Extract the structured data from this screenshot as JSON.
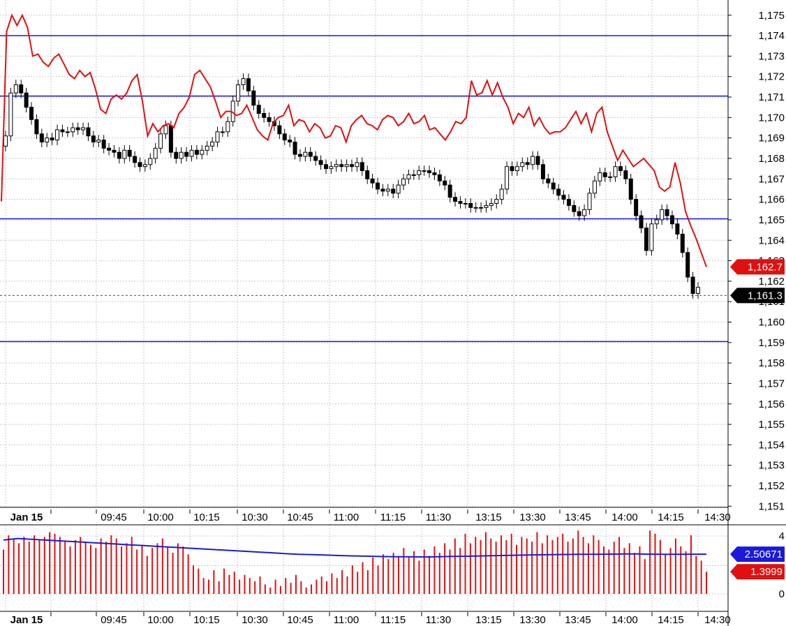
{
  "chart_data": [
    {
      "type": "candlestick",
      "y_ticks": [
        "1,151",
        "1,152",
        "1,153",
        "1,154",
        "1,155",
        "1,156",
        "1,157",
        "1,158",
        "1,159",
        "1,160",
        "1,161",
        "1,162",
        "1,163",
        "1,164",
        "1,165",
        "1,166",
        "1,167",
        "1,168",
        "1,169",
        "1,170",
        "1,171",
        "1,172",
        "1,173",
        "1,174",
        "1,175"
      ],
      "ylim": [
        1150.5,
        1175.3
      ],
      "x_tick_labels": [
        "Jan 15",
        "09:45",
        "10:00",
        "10:15",
        "10:30",
        "10:45",
        "11:00",
        "11:15",
        "11:30",
        "13:15",
        "13:30",
        "13:45",
        "14:00",
        "14:15",
        "14:30"
      ],
      "grid": true,
      "horizontal_levels": [
        1174.0,
        1171.05,
        1165.05,
        1159.05
      ],
      "last_price_level": 1161.3,
      "price_tags": [
        {
          "label": "1,162.7",
          "value": 1162.7,
          "color": "#e01010"
        },
        {
          "label": "1,161.3",
          "value": 1161.3,
          "color": "#000000"
        }
      ],
      "series": [
        {
          "style": "line",
          "color": "#e01010",
          "values": [
            1165.9,
            1174.2,
            1175.0,
            1174.5,
            1175.0,
            1174.4,
            1173.0,
            1173.1,
            1172.7,
            1172.5,
            1172.9,
            1173.1,
            1172.6,
            1172.1,
            1171.9,
            1172.3,
            1172.0,
            1172.2,
            1171.4,
            1170.4,
            1170.2,
            1170.9,
            1171.1,
            1170.9,
            1171.2,
            1171.8,
            1172.1,
            1170.8,
            1169.1,
            1169.7,
            1169.3,
            1169.6,
            1169.7,
            1169.5,
            1170.2,
            1170.5,
            1171.0,
            1172.1,
            1172.3,
            1171.9,
            1171.5,
            1170.8,
            1170.0,
            1170.3,
            1170.3,
            1170.1,
            1170.2,
            1170.6,
            1170.0,
            1169.4,
            1169.1,
            1168.9,
            1169.7,
            1170.0,
            1170.1,
            1170.6,
            1169.6,
            1169.9,
            1169.8,
            1169.3,
            1169.7,
            1169.5,
            1169.0,
            1169.1,
            1169.6,
            1169.5,
            1168.8,
            1169.6,
            1169.9,
            1170.1,
            1169.7,
            1169.6,
            1169.4,
            1169.9,
            1170.1,
            1170.0,
            1169.6,
            1169.8,
            1170.2,
            1169.7,
            1169.8,
            1170.1,
            1169.4,
            1169.5,
            1169.2,
            1168.9,
            1169.3,
            1169.8,
            1169.7,
            1170.0,
            1171.8,
            1171.1,
            1171.2,
            1171.8,
            1171.1,
            1171.7,
            1171.0,
            1170.5,
            1169.7,
            1170.2,
            1170.0,
            1170.5,
            1169.6,
            1170.0,
            1169.5,
            1169.2,
            1169.3,
            1169.3,
            1169.5,
            1169.9,
            1170.3,
            1169.7,
            1170.2,
            1169.3,
            1170.2,
            1170.5,
            1169.3,
            1168.6,
            1167.9,
            1168.4,
            1168.0,
            1167.6,
            1167.8,
            1168.0,
            1167.7,
            1167.4,
            1166.6,
            1166.4,
            1166.6,
            1167.8,
            1166.8,
            1165.4,
            1164.7,
            1164.1,
            1163.4,
            1162.7
          ]
        },
        {
          "style": "candles",
          "values": [
            1169.1,
            1171.2,
            1171.6,
            1171.2,
            1170.5,
            1169.9,
            1169.2,
            1168.8,
            1169.0,
            1168.9,
            1169.4,
            1169.3,
            1169.3,
            1169.5,
            1169.4,
            1169.5,
            1169.1,
            1168.8,
            1168.9,
            1168.5,
            1168.4,
            1168.3,
            1168.0,
            1168.4,
            1168.1,
            1167.8,
            1167.6,
            1167.7,
            1168.0,
            1168.5,
            1169.2,
            1169.6,
            1168.3,
            1168.0,
            1168.3,
            1168.1,
            1168.4,
            1168.2,
            1168.4,
            1168.6,
            1168.8,
            1169.3,
            1169.3,
            1169.8,
            1170.8,
            1171.6,
            1171.9,
            1171.3,
            1170.6,
            1170.2,
            1170.0,
            1169.8,
            1169.6,
            1169.2,
            1168.9,
            1168.8,
            1168.2,
            1168.1,
            1168.3,
            1168.1,
            1167.9,
            1167.7,
            1167.5,
            1167.6,
            1167.7,
            1167.6,
            1167.7,
            1167.6,
            1167.8,
            1167.4,
            1167.0,
            1166.8,
            1166.5,
            1166.4,
            1166.5,
            1166.3,
            1166.7,
            1167.0,
            1167.2,
            1167.2,
            1167.4,
            1167.4,
            1167.3,
            1167.2,
            1166.9,
            1166.7,
            1166.1,
            1165.9,
            1165.8,
            1165.8,
            1165.6,
            1165.6,
            1165.6,
            1165.7,
            1165.8,
            1166.0,
            1166.5,
            1167.6,
            1167.4,
            1167.6,
            1167.8,
            1167.7,
            1168.1,
            1167.7,
            1167.0,
            1166.8,
            1166.5,
            1166.2,
            1166.0,
            1165.7,
            1165.4,
            1165.2,
            1165.5,
            1166.3,
            1166.9,
            1167.3,
            1167.1,
            1167.1,
            1167.6,
            1167.4,
            1167.0,
            1166.0,
            1165.2,
            1164.6,
            1163.5,
            1164.8,
            1165.0,
            1165.5,
            1165.2,
            1164.8,
            1164.3,
            1163.4,
            1162.2,
            1161.4,
            1161.7
          ]
        }
      ]
    },
    {
      "type": "bar",
      "y_ticks": [
        "4",
        "0"
      ],
      "ylim": [
        0,
        4.1
      ],
      "x_tick_labels": [
        "Jan 15",
        "09:45",
        "10:00",
        "10:15",
        "10:30",
        "10:45",
        "11:00",
        "11:15",
        "11:30",
        "13:15",
        "13:30",
        "13:45",
        "14:00",
        "14:15",
        "14:30"
      ],
      "value_tags": [
        {
          "label": "2.50671",
          "value": 2.50671,
          "color": "#1a1adc"
        },
        {
          "label": "1.3999",
          "value": 1.3999,
          "color": "#e01010"
        }
      ],
      "series": [
        {
          "style": "bars",
          "color": "#e01010",
          "values": [
            2.8,
            3.7,
            3.5,
            3.2,
            3.6,
            3.3,
            3.7,
            3.4,
            3.6,
            3.9,
            3.8,
            3.6,
            3.3,
            3.0,
            3.4,
            3.6,
            3.3,
            3.1,
            2.9,
            3.5,
            3.3,
            3.7,
            3.5,
            3.0,
            3.2,
            3.6,
            2.8,
            3.1,
            2.4,
            2.9,
            3.2,
            3.5,
            3.0,
            2.6,
            3.2,
            3.0,
            2.5,
            1.8,
            1.6,
            1.0,
            0.9,
            1.5,
            0.8,
            1.6,
            1.2,
            1.4,
            0.9,
            1.2,
            1.0,
            0.8,
            1.1,
            0.6,
            0.4,
            0.9,
            0.5,
            1.0,
            0.7,
            1.2,
            0.8,
            0.4,
            0.6,
            0.9,
            1.1,
            0.8,
            1.3,
            1.0,
            1.5,
            1.1,
            1.8,
            1.4,
            2.0,
            1.5,
            2.3,
            1.8,
            2.5,
            2.2,
            2.6,
            2.4,
            2.9,
            2.3,
            2.7,
            2.1,
            2.8,
            2.4,
            3.0,
            2.6,
            3.2,
            2.8,
            3.5,
            2.9,
            3.8,
            3.2,
            3.6,
            3.4,
            3.9,
            3.5,
            3.3,
            3.7,
            3.4,
            3.8,
            3.1,
            3.6,
            3.5,
            3.3,
            3.9,
            3.2,
            3.7,
            3.4,
            3.6,
            3.8,
            3.3,
            3.5,
            4.0,
            3.6,
            3.2,
            3.7,
            3.4,
            3.0,
            2.8,
            3.3,
            3.6,
            2.9,
            3.2,
            2.6,
            3.0,
            2.2,
            4.0,
            3.8,
            3.4,
            2.5,
            2.9,
            3.5,
            3.0,
            2.7,
            3.7,
            2.4,
            2.1,
            1.4
          ]
        },
        {
          "style": "line",
          "color": "#1a1adc",
          "values": [
            3.4,
            3.5,
            3.45,
            3.4,
            3.35,
            3.3,
            3.25,
            3.2,
            3.15,
            3.1,
            3.05,
            3.0,
            2.95,
            2.9,
            2.85,
            2.8,
            2.75,
            2.7,
            2.65,
            2.6,
            2.55,
            2.5,
            2.48,
            2.45,
            2.42,
            2.4,
            2.38,
            2.36,
            2.35,
            2.34,
            2.33,
            2.35,
            2.37,
            2.38,
            2.4,
            2.42,
            2.44,
            2.45,
            2.47,
            2.48,
            2.49,
            2.5,
            2.5,
            2.51,
            2.52,
            2.52,
            2.51,
            2.5,
            2.5,
            2.51,
            2.51
          ]
        }
      ]
    }
  ]
}
